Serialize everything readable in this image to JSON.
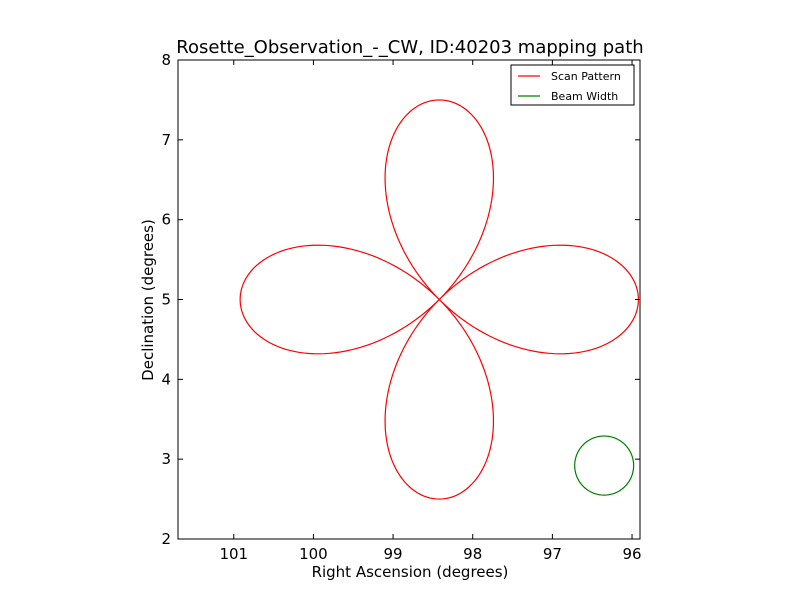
{
  "chart_data": {
    "type": "line",
    "title": "Rosette_Observation_-_CW, ID:40203 mapping path",
    "xlabel": "Right Ascension (degrees)",
    "ylabel": "Declination (degrees)",
    "xlim": [
      101.7,
      95.9
    ],
    "ylim": [
      2,
      8
    ],
    "x_reversed": true,
    "xticks": [
      101,
      100,
      99,
      98,
      97,
      96
    ],
    "yticks": [
      2,
      3,
      4,
      5,
      6,
      7,
      8
    ],
    "grid": false,
    "legend_position": "top-right",
    "series": [
      {
        "name": "Scan Pattern",
        "color": "#ff0000",
        "shape": "rose",
        "center": [
          98.42,
          5.0
        ],
        "ra_half_extent": 2.5,
        "dec_half_extent": 2.5,
        "rose_k": 2,
        "samples": 400,
        "start_ra": 100.93,
        "start_dec": 5.0
      },
      {
        "name": "Beam Width",
        "color": "#008000",
        "shape": "circle",
        "center": [
          96.35,
          2.92
        ],
        "ra_radius": 0.37,
        "dec_radius": 0.37
      }
    ]
  }
}
